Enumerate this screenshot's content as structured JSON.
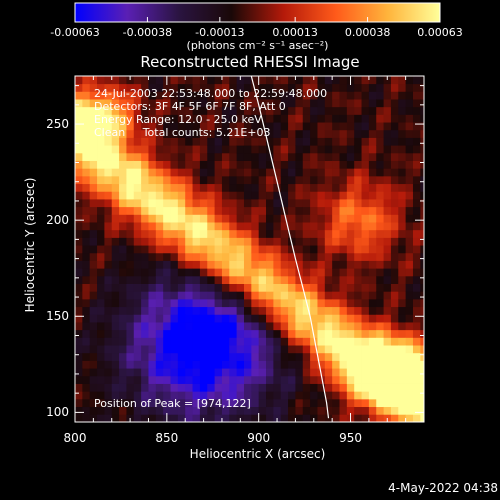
{
  "colors": {
    "background": "#000000",
    "foreground": "#ffffff"
  },
  "chart_data": {
    "type": "heatmap",
    "title": "Reconstructed RHESSI Image",
    "xlabel": "Heliocentric X (arcsec)",
    "ylabel": "Heliocentric Y (arcsec)",
    "xlim": [
      800,
      990
    ],
    "ylim": [
      95,
      275
    ],
    "x_ticks": [
      800,
      850,
      900,
      950
    ],
    "x_tick_labels": [
      "800",
      "850",
      "900",
      "950"
    ],
    "y_ticks": [
      100,
      150,
      200,
      250
    ],
    "y_tick_labels": [
      "100",
      "150",
      "200",
      "250"
    ],
    "colorbar": {
      "range": [
        -0.00063,
        0.00063
      ],
      "tick_values": [
        -0.00063,
        -0.00038,
        -0.00013,
        0.00013,
        0.00038,
        0.00063
      ],
      "tick_labels": [
        "-0.00063",
        "-0.00038",
        "-0.00013",
        "0.00013",
        "0.00038",
        "0.00063"
      ],
      "units": "(photons cm⁻² s⁻¹ asec⁻²)",
      "colormap": [
        "#0000ff",
        "#5a1fb4",
        "#2a1440",
        "#1a0808",
        "#b41a0a",
        "#ff5a1a",
        "#ffb43c",
        "#ffff9a"
      ]
    },
    "annotations": {
      "time_range": "24-Jul-2003 22:53:48.000 to 22:59:48.000",
      "detectors": "Detectors: 3F 4F 5F 6F 7F 8F, Att 0",
      "energy_range": "Energy Range: 12.0 - 25.0 keV",
      "method_and_counts": "Clean     Total counts: 5.21E+03",
      "peak": "Position of Peak = [974,122]"
    },
    "peak_position": [
      974,
      122
    ],
    "limb_curve": [
      [
        896,
        275
      ],
      [
        900,
        260
      ],
      [
        905,
        240
      ],
      [
        910,
        220
      ],
      [
        915,
        200
      ],
      [
        920,
        180
      ],
      [
        924,
        165
      ],
      [
        928,
        150
      ],
      [
        931,
        135
      ],
      [
        934,
        120
      ],
      [
        937,
        105
      ],
      [
        938,
        97
      ]
    ]
  },
  "timestamp": "4-May-2022 04:38"
}
